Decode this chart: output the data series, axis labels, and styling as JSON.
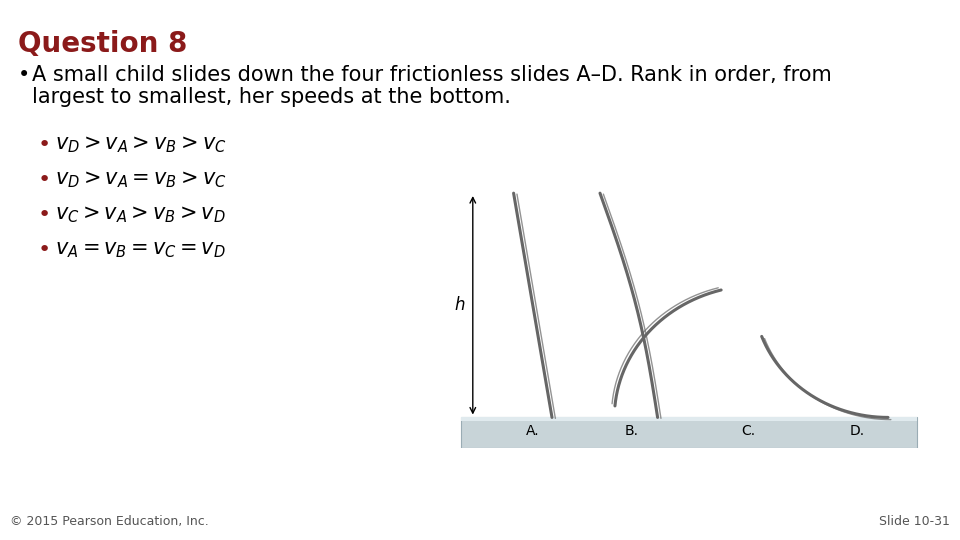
{
  "title": "Question 8",
  "title_color": "#8B1A1A",
  "title_fontsize": 20,
  "background_color": "#FFFFFF",
  "main_bullet": "•",
  "main_text_line1": "A small child slides down the four frictionless slides A–D. Rank in order, from",
  "main_text_line2": "largest to smallest, her speeds at the bottom.",
  "main_text_fontsize": 15,
  "bullet_color": "#8B1A1A",
  "options": [
    "$v_D > v_A > v_B > v_C$",
    "$v_D > v_A = v_B > v_C$",
    "$v_C > v_A > v_B > v_D$",
    "$v_A = v_B = v_C = v_D$"
  ],
  "options_fontsize": 15,
  "footer_left": "© 2015 Pearson Education, Inc.",
  "footer_right": "Slide 10-31",
  "footer_fontsize": 9,
  "slide_labels": [
    "A.",
    "B.",
    "C.",
    "D."
  ],
  "diagram_color": "#666666",
  "ground_color_top": "#D0D8DC",
  "ground_color_bottom": "#B8C4C8"
}
